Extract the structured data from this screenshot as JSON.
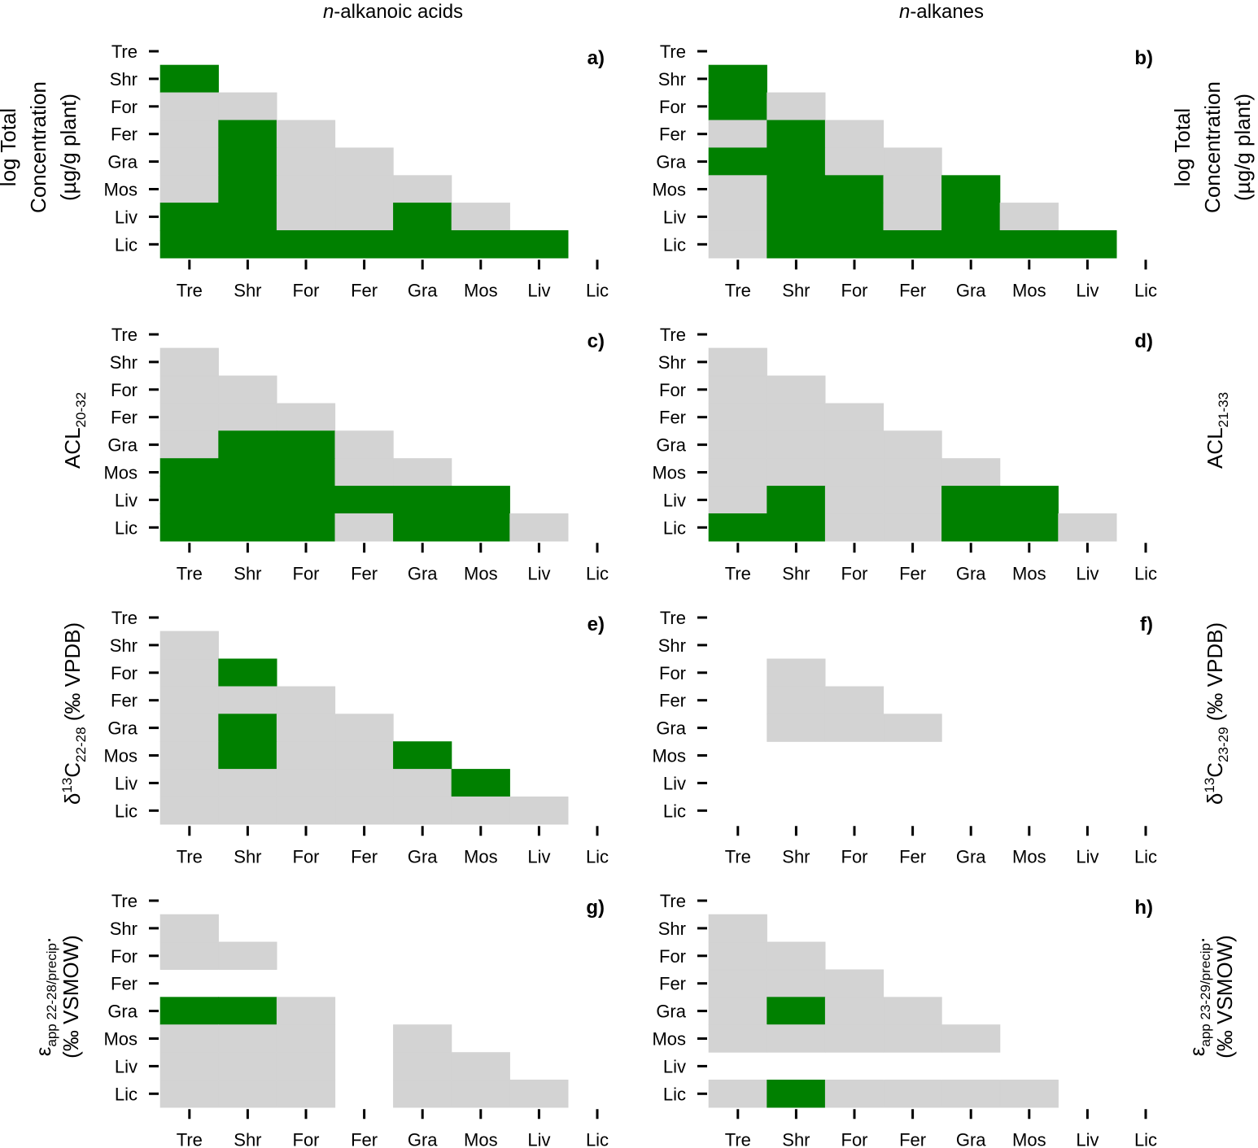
{
  "column_titles": [
    {
      "prefix": "n",
      "rest": "-alkanoic acids"
    },
    {
      "prefix": "n",
      "rest": "-alkanes"
    }
  ],
  "colors": {
    "significant": "#008000",
    "not_significant": "#d3d3d3"
  },
  "chart_data": {
    "type": "heatmap",
    "categories": [
      "Tre",
      "Shr",
      "For",
      "Fer",
      "Gra",
      "Mos",
      "Liv",
      "Lic"
    ],
    "legend": "none",
    "panels": [
      {
        "label": "a)",
        "ylabel": {
          "lines": [
            "log Total",
            "Concentration",
            "(µg/g plant)"
          ]
        },
        "rows": [
          {
            "row": "Shr",
            "cells": [
              "S"
            ]
          },
          {
            "row": "For",
            "cells": [
              "N",
              "N"
            ]
          },
          {
            "row": "Fer",
            "cells": [
              "N",
              "S",
              "N"
            ]
          },
          {
            "row": "Gra",
            "cells": [
              "N",
              "S",
              "N",
              "N"
            ]
          },
          {
            "row": "Mos",
            "cells": [
              "N",
              "S",
              "N",
              "N",
              "N"
            ]
          },
          {
            "row": "Liv",
            "cells": [
              "S",
              "S",
              "N",
              "N",
              "S",
              "N"
            ]
          },
          {
            "row": "Lic",
            "cells": [
              "S",
              "S",
              "S",
              "S",
              "S",
              "S",
              "S"
            ]
          }
        ]
      },
      {
        "label": "b)",
        "ylabel": {
          "lines": [
            "log Total",
            "Concentration",
            "(µg/g plant)"
          ]
        },
        "rows": [
          {
            "row": "Shr",
            "cells": [
              "S"
            ]
          },
          {
            "row": "For",
            "cells": [
              "S",
              "N"
            ]
          },
          {
            "row": "Fer",
            "cells": [
              "N",
              "S",
              "N"
            ]
          },
          {
            "row": "Gra",
            "cells": [
              "S",
              "S",
              "N",
              "N"
            ]
          },
          {
            "row": "Mos",
            "cells": [
              "N",
              "S",
              "S",
              "N",
              "S"
            ]
          },
          {
            "row": "Liv",
            "cells": [
              "N",
              "S",
              "S",
              "N",
              "S",
              "N"
            ]
          },
          {
            "row": "Lic",
            "cells": [
              "N",
              "S",
              "S",
              "S",
              "S",
              "S",
              "S"
            ]
          }
        ]
      },
      {
        "label": "c)",
        "ylabel": {
          "base": "ACL",
          "sub": "20-32"
        },
        "rows": [
          {
            "row": "Shr",
            "cells": [
              "N"
            ]
          },
          {
            "row": "For",
            "cells": [
              "N",
              "N"
            ]
          },
          {
            "row": "Fer",
            "cells": [
              "N",
              "N",
              "N"
            ]
          },
          {
            "row": "Gra",
            "cells": [
              "N",
              "S",
              "S",
              "N"
            ]
          },
          {
            "row": "Mos",
            "cells": [
              "S",
              "S",
              "S",
              "N",
              "N"
            ]
          },
          {
            "row": "Liv",
            "cells": [
              "S",
              "S",
              "S",
              "S",
              "S",
              "S"
            ]
          },
          {
            "row": "Lic",
            "cells": [
              "S",
              "S",
              "S",
              "N",
              "S",
              "S",
              "N"
            ]
          }
        ]
      },
      {
        "label": "d)",
        "ylabel": {
          "base": "ACL",
          "sub": "21-33"
        },
        "rows": [
          {
            "row": "Shr",
            "cells": [
              "N"
            ]
          },
          {
            "row": "For",
            "cells": [
              "N",
              "N"
            ]
          },
          {
            "row": "Fer",
            "cells": [
              "N",
              "N",
              "N"
            ]
          },
          {
            "row": "Gra",
            "cells": [
              "N",
              "N",
              "N",
              "N"
            ]
          },
          {
            "row": "Mos",
            "cells": [
              "N",
              "N",
              "N",
              "N",
              "N"
            ]
          },
          {
            "row": "Liv",
            "cells": [
              "N",
              "S",
              "N",
              "N",
              "S",
              "S"
            ]
          },
          {
            "row": "Lic",
            "cells": [
              "S",
              "S",
              "N",
              "N",
              "S",
              "S",
              "N"
            ]
          }
        ]
      },
      {
        "label": "e)",
        "ylabel": {
          "pre": "δ",
          "sup": "13",
          "base": "C",
          "sub": "22-28",
          "post": " (‰ VPDB)"
        },
        "rows": [
          {
            "row": "Shr",
            "cells": [
              "N"
            ]
          },
          {
            "row": "For",
            "cells": [
              "N",
              "S"
            ]
          },
          {
            "row": "Fer",
            "cells": [
              "N",
              "N",
              "N"
            ]
          },
          {
            "row": "Gra",
            "cells": [
              "N",
              "S",
              "N",
              "N"
            ]
          },
          {
            "row": "Mos",
            "cells": [
              "N",
              "S",
              "N",
              "N",
              "S"
            ]
          },
          {
            "row": "Liv",
            "cells": [
              "N",
              "N",
              "N",
              "N",
              "N",
              "S"
            ]
          },
          {
            "row": "Lic",
            "cells": [
              "N",
              "N",
              "N",
              "N",
              "N",
              "N",
              "N"
            ]
          }
        ]
      },
      {
        "label": "f)",
        "ylabel": {
          "pre": "δ",
          "sup": "13",
          "base": "C",
          "sub": "23-29",
          "post": " (‰ VPDB)"
        },
        "rows": [
          {
            "row": "Shr",
            "cells": [
              "-"
            ]
          },
          {
            "row": "For",
            "cells": [
              "-",
              "N"
            ]
          },
          {
            "row": "Fer",
            "cells": [
              "-",
              "N",
              "N"
            ]
          },
          {
            "row": "Gra",
            "cells": [
              "-",
              "N",
              "N",
              "N"
            ]
          },
          {
            "row": "Mos",
            "cells": [
              "-",
              "-",
              "-",
              "-",
              "-"
            ]
          },
          {
            "row": "Liv",
            "cells": [
              "-",
              "-",
              "-",
              "-",
              "-",
              "-"
            ]
          },
          {
            "row": "Lic",
            "cells": [
              "-",
              "-",
              "-",
              "-",
              "-",
              "-",
              "-"
            ]
          }
        ]
      },
      {
        "label": "g)",
        "ylabel": {
          "base": "ε",
          "sub": "app 22-28/precip",
          "post": ".",
          "line2": "(‰ VSMOW)"
        },
        "rows": [
          {
            "row": "Shr",
            "cells": [
              "N"
            ]
          },
          {
            "row": "For",
            "cells": [
              "N",
              "N"
            ]
          },
          {
            "row": "Fer",
            "cells": [
              "-",
              "-",
              "-"
            ]
          },
          {
            "row": "Gra",
            "cells": [
              "S",
              "S",
              "N",
              "-"
            ]
          },
          {
            "row": "Mos",
            "cells": [
              "N",
              "N",
              "N",
              "-",
              "N"
            ]
          },
          {
            "row": "Liv",
            "cells": [
              "N",
              "N",
              "N",
              "-",
              "N",
              "N"
            ]
          },
          {
            "row": "Lic",
            "cells": [
              "N",
              "N",
              "N",
              "-",
              "N",
              "N",
              "N"
            ]
          }
        ]
      },
      {
        "label": "h)",
        "ylabel": {
          "base": "ε",
          "sub": "app 23-29/precip",
          "post": ".",
          "line2": "(‰ VSMOW)"
        },
        "rows": [
          {
            "row": "Shr",
            "cells": [
              "N"
            ]
          },
          {
            "row": "For",
            "cells": [
              "N",
              "N"
            ]
          },
          {
            "row": "Fer",
            "cells": [
              "N",
              "N",
              "N"
            ]
          },
          {
            "row": "Gra",
            "cells": [
              "N",
              "S",
              "N",
              "N"
            ]
          },
          {
            "row": "Mos",
            "cells": [
              "N",
              "N",
              "N",
              "N",
              "N"
            ]
          },
          {
            "row": "Liv",
            "cells": [
              "-",
              "-",
              "-",
              "-",
              "-",
              "-"
            ]
          },
          {
            "row": "Lic",
            "cells": [
              "N",
              "S",
              "N",
              "N",
              "N",
              "N",
              "-"
            ]
          }
        ]
      }
    ]
  }
}
